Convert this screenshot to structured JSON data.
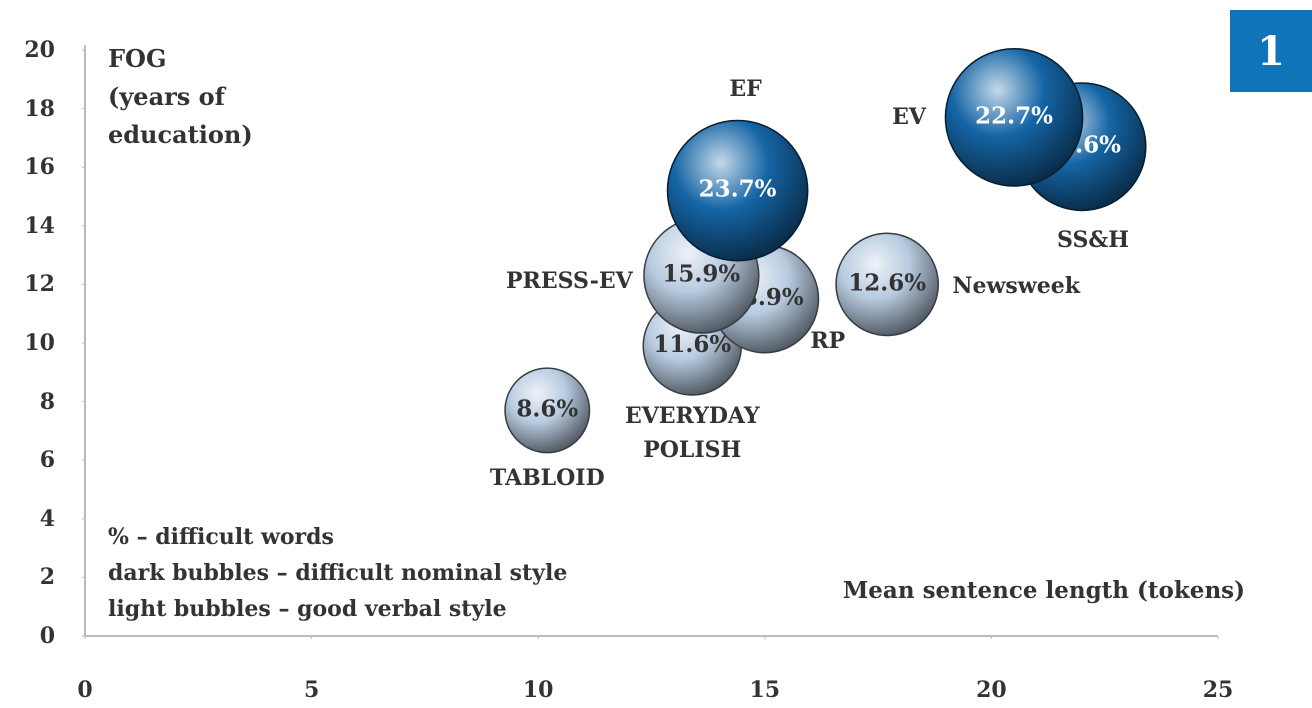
{
  "chart_data": {
    "type": "bubble",
    "y_label": "FOG\n(years of\neducation)",
    "x_label": "Mean sentence length (tokens)",
    "notes": [
      "% – difficult words",
      "dark bubbles – difficult nominal style",
      "light bubbles – good verbal style"
    ],
    "badge": "1",
    "xlim": [
      0,
      25
    ],
    "xticks": [
      0,
      5,
      10,
      15,
      20,
      25
    ],
    "ylim": [
      0,
      20
    ],
    "yticks": [
      0,
      2,
      4,
      6,
      8,
      10,
      12,
      14,
      16,
      18,
      20
    ],
    "points": [
      {
        "label": "TABLOID",
        "x": 10.2,
        "y": 7.7,
        "size": 8.6,
        "size_label": "8.6%",
        "color": "#b8cbe0"
      },
      {
        "label": "EVERYDAY\nPOLISH",
        "x": 13.4,
        "y": 9.9,
        "size": 11.6,
        "size_label": "11.6%",
        "color": "#b8cbe0"
      },
      {
        "label": "RP",
        "x": 15.0,
        "y": 11.5,
        "size": 13.9,
        "size_label": "13.9%",
        "color": "#b8cbe0"
      },
      {
        "label": "PRESS-EV",
        "x": 13.6,
        "y": 12.3,
        "size": 15.9,
        "size_label": "15.9%",
        "color": "#b8cbe0"
      },
      {
        "label": "Newsweek",
        "x": 17.7,
        "y": 12.0,
        "size": 12.6,
        "size_label": "12.6%",
        "color": "#b8cbe0"
      },
      {
        "label": "SS&H",
        "x": 22.0,
        "y": 16.7,
        "size": 19.6,
        "size_label": "19.6%",
        "color": "#1565a5"
      },
      {
        "label": "EV",
        "x": 20.5,
        "y": 17.7,
        "size": 22.7,
        "size_label": "22.7%",
        "color": "#1565a5"
      },
      {
        "label": "EF",
        "x": 14.4,
        "y": 15.2,
        "size": 23.7,
        "size_label": "23.7%",
        "color": "#1565a5"
      }
    ]
  }
}
